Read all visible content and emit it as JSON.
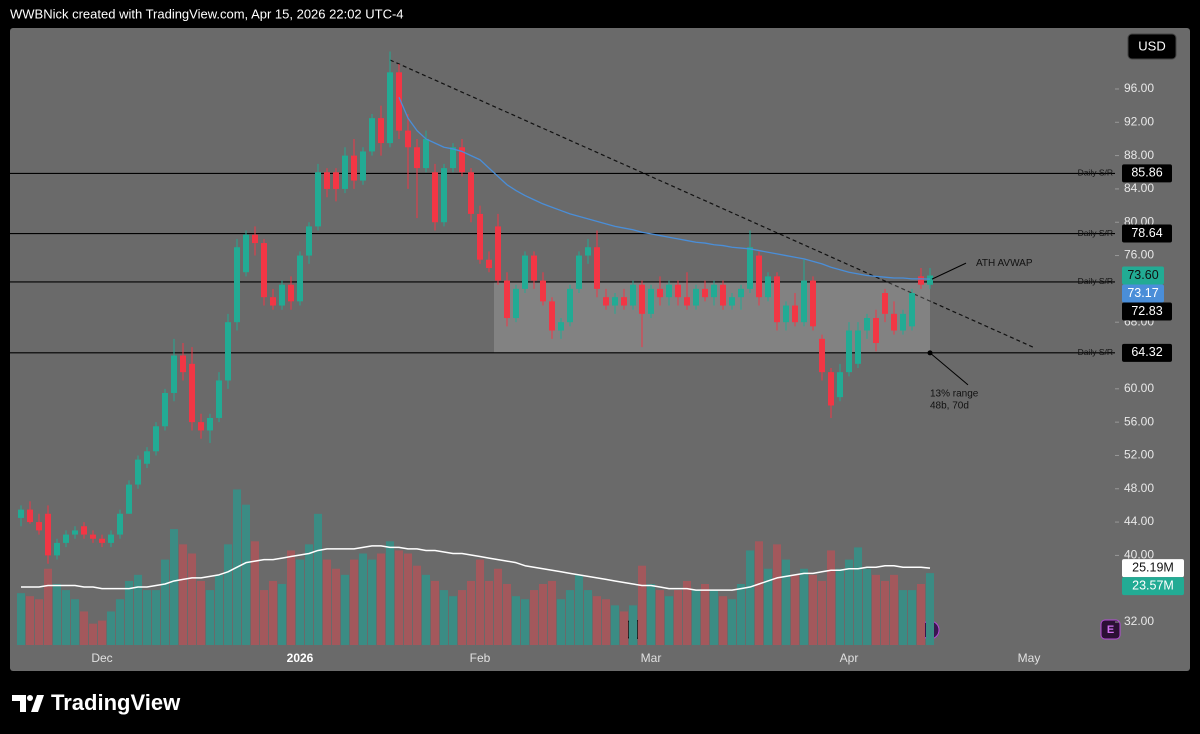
{
  "chart_data": {
    "type": "candlestick",
    "header": "WWBNick created with TradingView.com, Apr 15, 2026 22:02 UTC-4",
    "currency": "USD",
    "footer": "TradingView",
    "categories": [
      null,
      null,
      null,
      null,
      null,
      null,
      null,
      null,
      null,
      "Dec",
      null,
      null,
      null,
      null,
      null,
      null,
      null,
      null,
      null,
      null,
      null,
      null,
      null,
      null,
      null,
      null,
      null,
      null,
      null,
      null,
      null,
      "2026",
      null,
      null,
      null,
      null,
      null,
      null,
      null,
      null,
      null,
      null,
      null,
      null,
      null,
      null,
      null,
      null,
      null,
      null,
      null,
      "Feb",
      null,
      null,
      null,
      null,
      null,
      null,
      null,
      null,
      null,
      null,
      null,
      null,
      null,
      null,
      null,
      null,
      null,
      null,
      "Mar",
      null,
      null,
      null,
      null,
      null,
      null,
      null,
      null,
      null,
      null,
      null,
      null,
      null,
      null,
      null,
      null,
      null,
      null,
      null,
      null,
      null,
      "Apr",
      null,
      null,
      null,
      null,
      null,
      null,
      null,
      null,
      null,
      null,
      null,
      null,
      null,
      null,
      null,
      null,
      null,
      null,
      null,
      "May"
    ],
    "open": [
      44.5,
      45.5,
      44,
      45,
      40,
      41.5,
      42.5,
      43.5,
      42.5,
      42,
      41.5,
      42.5,
      45,
      48.5,
      51,
      52.5,
      55.5,
      59.5,
      64,
      63,
      56,
      55,
      56.5,
      61,
      68,
      74,
      78.5,
      77.5,
      71,
      70,
      72.5,
      70.5,
      76,
      79.5,
      86,
      86,
      84,
      88,
      85,
      88.5,
      92.5,
      89.5,
      98,
      91,
      89,
      86.5,
      86,
      80,
      86.5,
      89,
      86,
      81,
      75.5,
      79.5,
      73,
      68.5,
      72,
      76,
      73,
      70.5,
      67,
      68,
      72,
      76,
      77,
      71,
      70,
      71,
      70,
      72.5,
      69,
      72,
      71,
      72.5,
      71,
      70,
      72,
      71,
      72.5,
      70,
      71,
      72,
      76,
      71,
      73.5,
      68,
      70,
      68,
      73,
      66,
      62,
      59,
      62,
      63,
      67,
      68.5,
      71.5,
      69,
      67,
      67.5,
      73.5,
      72.5,
      null,
      null,
      null,
      null,
      null,
      null,
      null,
      null,
      null,
      null,
      null
    ],
    "high": [
      46,
      46.5,
      45,
      46,
      42,
      43,
      43.5,
      44,
      43,
      42.5,
      43,
      45.5,
      49,
      52,
      53,
      56,
      60,
      66,
      65.5,
      65,
      57,
      57,
      62,
      69,
      78,
      79,
      79.5,
      78,
      72,
      73,
      73.5,
      76.5,
      80,
      87,
      86.5,
      86.5,
      89,
      90,
      89,
      93,
      94,
      100.5,
      99,
      93,
      90,
      91,
      87,
      87,
      89.5,
      90,
      86.5,
      82,
      76.5,
      81,
      74,
      72.5,
      76.5,
      76.5,
      74,
      71,
      68.5,
      72.5,
      76.5,
      78,
      79,
      72,
      71.5,
      72,
      73,
      73,
      72.5,
      73.5,
      73,
      73,
      74,
      72.5,
      73,
      73,
      73,
      71.5,
      72.5,
      79,
      76.5,
      74,
      74,
      70.5,
      71.5,
      75.5,
      73.5,
      66.5,
      62.5,
      63,
      68,
      68,
      69,
      69.5,
      72,
      70.5,
      69.5,
      72,
      74.5,
      74.5,
      null,
      null,
      null,
      null,
      null,
      null,
      null,
      null,
      null,
      null,
      null
    ],
    "low": [
      43.5,
      43.8,
      42.5,
      39,
      39.5,
      41,
      42,
      42,
      41.5,
      41,
      41,
      42,
      45,
      48,
      50.5,
      52,
      55,
      58.5,
      61,
      55,
      54,
      53.5,
      56,
      60,
      67,
      73.5,
      76,
      70,
      69.5,
      69.5,
      69.5,
      70,
      75,
      79,
      83,
      82.5,
      83.5,
      84,
      84.5,
      88,
      88,
      89,
      90,
      84,
      80.5,
      86,
      79,
      79.5,
      86,
      85.5,
      80,
      75,
      74,
      72.5,
      67.5,
      68,
      71.5,
      72,
      70,
      66,
      66,
      67.5,
      71.5,
      75,
      71,
      69.5,
      69,
      69.5,
      69.5,
      65,
      68.5,
      70,
      70,
      70,
      69.5,
      69.5,
      70.5,
      70,
      69.5,
      69.5,
      69.5,
      71.5,
      70,
      70.5,
      67,
      67,
      67.5,
      67.5,
      67,
      61,
      56.5,
      58.5,
      61.5,
      62.5,
      66,
      64.5,
      68,
      66.5,
      66.5,
      67,
      72,
      72,
      null,
      null,
      null,
      null,
      null,
      null,
      null,
      null,
      null,
      null,
      null
    ],
    "close": [
      45.5,
      44,
      43,
      40,
      41.5,
      42.5,
      43,
      42.5,
      42,
      41.5,
      42.5,
      45,
      48.5,
      51.5,
      52.5,
      55.5,
      59.5,
      64,
      62,
      56,
      55,
      56.5,
      61,
      68,
      77,
      78.5,
      77.5,
      71,
      70,
      72.5,
      70.5,
      76,
      79.5,
      86,
      84,
      84,
      88,
      85,
      88.5,
      92.5,
      89.5,
      98,
      91,
      89,
      86.5,
      90,
      80,
      86.5,
      89,
      86,
      81,
      75.5,
      74.5,
      73,
      68.5,
      72,
      76,
      73,
      70.5,
      67,
      68,
      72,
      76,
      77,
      72,
      70,
      71,
      70,
      72.5,
      69,
      72,
      71,
      72.5,
      71,
      70,
      72,
      71,
      72.5,
      70,
      71,
      72,
      77,
      71,
      73.5,
      68,
      70,
      68,
      73,
      67.5,
      62,
      58,
      62,
      67,
      67,
      68.5,
      65.5,
      69,
      67,
      69,
      71.5,
      72.5,
      73.6,
      null,
      null,
      null,
      null,
      null,
      null,
      null,
      null,
      null,
      null,
      null
    ],
    "close_label": "73.60",
    "colors": {
      "up": "#22ab94",
      "down": "#f23645",
      "volume_up": "#3b8c84",
      "volume_down": "#a3585c"
    },
    "avwap": {
      "name": "ATH AVWAP",
      "color": "#4a8ed8",
      "last_label": "73.17",
      "values": [
        null,
        null,
        null,
        null,
        null,
        null,
        null,
        null,
        null,
        null,
        null,
        null,
        null,
        null,
        null,
        null,
        null,
        null,
        null,
        null,
        null,
        null,
        null,
        null,
        null,
        null,
        null,
        null,
        null,
        null,
        null,
        null,
        null,
        null,
        null,
        null,
        null,
        null,
        null,
        null,
        null,
        null,
        95,
        92.5,
        91,
        90,
        89.5,
        89,
        88.8,
        88.5,
        88,
        87.5,
        86.5,
        85.5,
        84.5,
        83.8,
        83.2,
        82.7,
        82.2,
        81.8,
        81.4,
        81,
        80.7,
        80.4,
        80.1,
        79.8,
        79.5,
        79.3,
        79.1,
        78.8,
        78.6,
        78.4,
        78.2,
        78,
        77.8,
        77.6,
        77.5,
        77.3,
        77.2,
        77,
        76.9,
        76.8,
        76.6,
        76.4,
        76.2,
        76,
        75.8,
        75.6,
        75.3,
        75,
        74.6,
        74.3,
        74,
        73.8,
        73.6,
        73.5,
        73.4,
        73.3,
        73.3,
        73.2,
        73.2,
        73.17,
        null,
        null,
        null,
        null,
        null,
        null,
        null,
        null,
        null,
        null,
        null
      ]
    },
    "volume": {
      "last_label": "23.57M",
      "values": [
        17,
        16,
        15,
        25,
        20,
        18,
        15,
        11,
        7,
        8,
        11,
        15,
        21,
        23,
        18,
        18,
        28,
        38,
        33,
        30,
        21,
        18,
        23,
        33,
        51,
        46,
        34,
        18,
        21,
        20,
        31,
        28,
        33,
        43,
        28,
        25,
        23,
        28,
        30,
        28,
        30,
        34,
        31,
        30,
        26,
        23,
        21,
        18,
        16,
        18,
        21,
        28,
        21,
        25,
        20,
        16,
        15,
        18,
        20,
        21,
        15,
        18,
        23,
        18,
        16,
        15,
        13,
        11,
        13,
        26,
        20,
        18,
        16,
        18,
        21,
        18,
        20,
        18,
        16,
        15,
        20,
        31,
        34,
        25,
        33,
        28,
        23,
        25,
        23,
        21,
        31,
        25,
        28,
        32,
        25,
        23,
        21,
        23,
        18,
        18,
        20,
        23.57,
        null,
        null,
        null,
        null,
        null,
        null,
        null,
        null,
        null,
        null,
        null
      ]
    },
    "volume_ma": {
      "color": "#ffffff",
      "last_label": "25.19M",
      "values": [
        19,
        19,
        19,
        19.5,
        19.5,
        19.5,
        19.5,
        19,
        19,
        18.5,
        18.5,
        18.5,
        18.5,
        19,
        19,
        19.5,
        20,
        21,
        21.5,
        22,
        22,
        22.5,
        23,
        24,
        25.5,
        27,
        27.5,
        28,
        28,
        28.5,
        29,
        29.5,
        30,
        31,
        31.5,
        31.5,
        31.5,
        31.5,
        32,
        32.5,
        32.5,
        32,
        32,
        31.5,
        31.5,
        31,
        31,
        30.5,
        30,
        30,
        29.5,
        29,
        28.5,
        28,
        27.5,
        27,
        26,
        25.5,
        25,
        24.5,
        24,
        23.5,
        23,
        22.5,
        22,
        21.5,
        21,
        20.5,
        20,
        19.5,
        19.5,
        19,
        18.5,
        18.5,
        18.5,
        18,
        18,
        18,
        18,
        18,
        18.5,
        19,
        20,
        21,
        22,
        22.5,
        23,
        23.5,
        23.5,
        24,
        24.5,
        24.5,
        25,
        25,
        25.5,
        25.5,
        26,
        26,
        25.5,
        25.5,
        25.5,
        25.19,
        null,
        null,
        null,
        null,
        null,
        null,
        null,
        null,
        null,
        null,
        null
      ]
    },
    "sr_levels": [
      {
        "name": "Daily S/R",
        "value": 85.86,
        "value_label": "85.86"
      },
      {
        "name": "Daily S/R",
        "value": 78.64,
        "value_label": "78.64"
      },
      {
        "name": "Daily S/R",
        "value": 72.83,
        "value_label": "72.83"
      },
      {
        "name": "Daily S/R",
        "value": 64.32,
        "value_label": "64.32"
      }
    ],
    "range_note": [
      "13% range",
      "48b, 70d"
    ],
    "earnings": [
      "E",
      "E"
    ],
    "ylim": [
      26.24,
      103.08
    ],
    "yticks": [
      {
        "value": 96,
        "label": "96.00"
      },
      {
        "value": 92,
        "label": "92.00"
      },
      {
        "value": 88,
        "label": "88.00"
      },
      {
        "value": 84,
        "label": "84.00"
      },
      {
        "value": 80,
        "label": "80.00"
      },
      {
        "value": 76,
        "label": "76.00"
      },
      {
        "value": 68,
        "label": "68.00"
      },
      {
        "value": 60,
        "label": "60.00"
      },
      {
        "value": 56,
        "label": "56.00"
      },
      {
        "value": 52,
        "label": "52.00"
      },
      {
        "value": 48,
        "label": "48.00"
      },
      {
        "value": 44,
        "label": "44.00"
      },
      {
        "value": 40,
        "label": "40.00"
      },
      {
        "value": 32,
        "label": "32.00"
      }
    ],
    "grid": false
  }
}
